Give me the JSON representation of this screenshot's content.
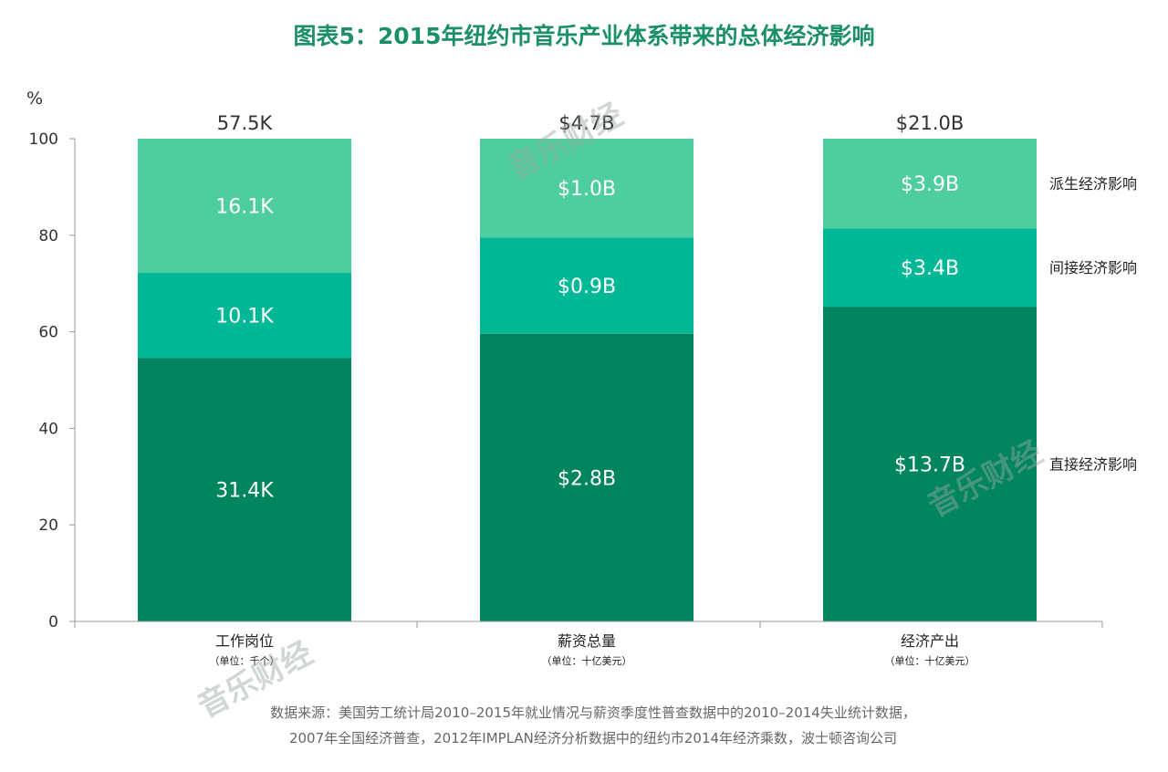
{
  "chart_data": {
    "type": "stacked-bar",
    "title": "图表5：2015年纽约市音乐产业体系带来的总体经济影响",
    "ylabel": "%",
    "ylim": [
      0,
      100
    ],
    "yticks": [
      "0",
      "20",
      "40",
      "60",
      "80",
      "100"
    ],
    "categories": [
      {
        "name": "工作岗位",
        "unit": "（单位：千个）",
        "total": "57.5K"
      },
      {
        "name": "薪资总量",
        "unit": "（单位：十亿美元）",
        "total": "$4.7B"
      },
      {
        "name": "经济产出",
        "unit": "（单位：十亿美元）",
        "total": "$21.0B"
      }
    ],
    "series": [
      {
        "name": "直接经济影响",
        "color": "#00855f",
        "values": [
          54.6,
          59.6,
          65.2
        ],
        "labels": [
          "31.4K",
          "$2.8B",
          "$13.7B"
        ]
      },
      {
        "name": "间接经济影响",
        "color": "#00b896",
        "values": [
          17.6,
          19.9,
          16.2
        ],
        "labels": [
          "10.1K",
          "$0.9B",
          "$3.4B"
        ]
      },
      {
        "name": "派生经济影响",
        "color": "#4ecd9f",
        "values": [
          27.8,
          20.5,
          18.6
        ],
        "labels": [
          "16.1K",
          "$1.0B",
          "$3.9B"
        ]
      }
    ],
    "legend_position": "right",
    "source": [
      "数据来源：美国劳工统计局2010–2015年就业情况与薪资季度性普查数据中的2010–2014失业统计数据，",
      "2007年全国经济普查，2012年IMPLAN经济分析数据中的纽约市2014年经济乘数，波士顿咨询公司"
    ]
  },
  "watermark": "音乐财经"
}
